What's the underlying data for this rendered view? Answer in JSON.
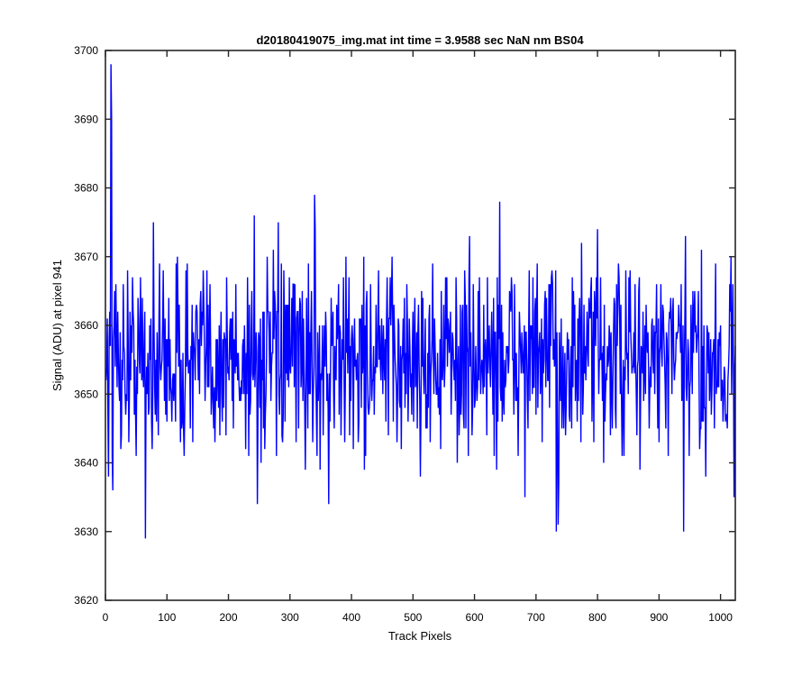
{
  "chart_data": {
    "type": "line",
    "title": "d20180419075_img.mat int time = 3.9588 sec  NaN nm BS04",
    "xlabel": "Track Pixels",
    "ylabel": "Signal (ADU) at pixel 941",
    "xlim": [
      0,
      1024
    ],
    "ylim": [
      3620,
      3700
    ],
    "xticks": [
      "0",
      "100",
      "200",
      "300",
      "400",
      "500",
      "600",
      "700",
      "800",
      "900",
      "1000"
    ],
    "yticks": [
      "3620",
      "3630",
      "3640",
      "3650",
      "3660",
      "3670",
      "3680",
      "3690",
      "3700"
    ],
    "grid": false,
    "legend": "none",
    "series": [
      {
        "color": "#0000ff",
        "noise_mean": 3655,
        "noise_range": [
          3629,
          3679
        ],
        "x_start": 1,
        "x_end": 1024,
        "points": [
          [
            1,
            3652
          ],
          [
            3,
            3661
          ],
          [
            5,
            3638
          ],
          [
            7,
            3662
          ],
          [
            9,
            3698
          ],
          [
            10,
            3690
          ],
          [
            12,
            3636
          ],
          [
            14,
            3660
          ],
          [
            65,
            3629
          ],
          [
            78,
            3675
          ],
          [
            242,
            3676
          ],
          [
            247,
            3634
          ],
          [
            340,
            3679
          ],
          [
            363,
            3634
          ],
          [
            641,
            3678
          ],
          [
            733,
            3630
          ],
          [
            736,
            3631
          ],
          [
            800,
            3674
          ],
          [
            940,
            3630
          ],
          [
            1017,
            3670
          ],
          [
            1022,
            3635
          ]
        ]
      }
    ]
  }
}
